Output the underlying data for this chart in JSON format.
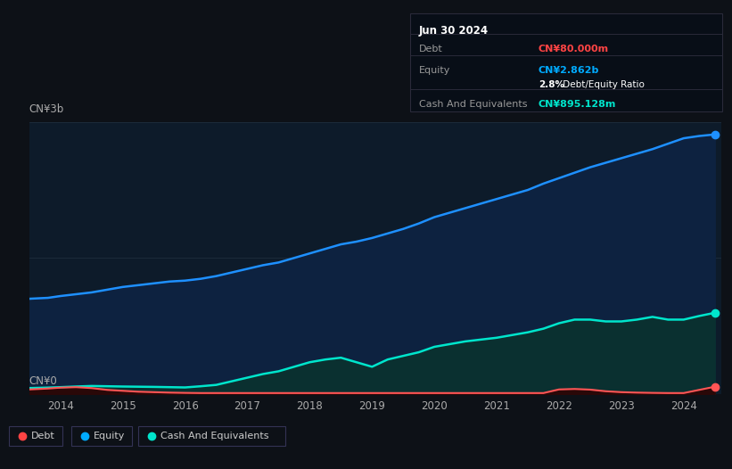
{
  "background_color": "#0d1117",
  "plot_bg_color": "#0d1b2a",
  "title_box": {
    "date": "Jun 30 2024",
    "debt_label": "Debt",
    "debt_value": "CN¥80.000m",
    "debt_color": "#ff4444",
    "equity_label": "Equity",
    "equity_value": "CN¥2.862b",
    "equity_color": "#00aaff",
    "ratio_bold": "2.8%",
    "ratio_rest": " Debt/Equity Ratio",
    "cash_label": "Cash And Equivalents",
    "cash_value": "CN¥895.128m",
    "cash_color": "#00e5cc",
    "box_bg": "#080e17",
    "box_border": "#2a2a3a",
    "text_color": "#999999"
  },
  "y_label_top": "CN¥3b",
  "y_label_bottom": "CN¥0",
  "x_ticks": [
    2014,
    2015,
    2016,
    2017,
    2018,
    2019,
    2020,
    2021,
    2022,
    2023,
    2024
  ],
  "legend": [
    {
      "label": "Debt",
      "color": "#ff4444"
    },
    {
      "label": "Equity",
      "color": "#00aaff"
    },
    {
      "label": "Cash And Equivalents",
      "color": "#00e5cc"
    }
  ],
  "equity_data": {
    "x": [
      2013.5,
      2013.8,
      2014.0,
      2014.25,
      2014.5,
      2014.75,
      2015.0,
      2015.25,
      2015.5,
      2015.75,
      2016.0,
      2016.25,
      2016.5,
      2016.75,
      2017.0,
      2017.25,
      2017.5,
      2017.75,
      2018.0,
      2018.25,
      2018.5,
      2018.75,
      2019.0,
      2019.25,
      2019.5,
      2019.75,
      2020.0,
      2020.25,
      2020.5,
      2020.75,
      2021.0,
      2021.25,
      2021.5,
      2021.75,
      2022.0,
      2022.25,
      2022.5,
      2022.75,
      2023.0,
      2023.25,
      2023.5,
      2023.75,
      2024.0,
      2024.25,
      2024.5
    ],
    "y": [
      1.05,
      1.06,
      1.08,
      1.1,
      1.12,
      1.15,
      1.18,
      1.2,
      1.22,
      1.24,
      1.25,
      1.27,
      1.3,
      1.34,
      1.38,
      1.42,
      1.45,
      1.5,
      1.55,
      1.6,
      1.65,
      1.68,
      1.72,
      1.77,
      1.82,
      1.88,
      1.95,
      2.0,
      2.05,
      2.1,
      2.15,
      2.2,
      2.25,
      2.32,
      2.38,
      2.44,
      2.5,
      2.55,
      2.6,
      2.65,
      2.7,
      2.76,
      2.82,
      2.845,
      2.862
    ]
  },
  "cash_data": {
    "x": [
      2013.5,
      2013.8,
      2014.0,
      2014.25,
      2014.5,
      2014.75,
      2015.0,
      2015.25,
      2015.5,
      2015.75,
      2016.0,
      2016.25,
      2016.5,
      2016.75,
      2017.0,
      2017.25,
      2017.5,
      2017.75,
      2018.0,
      2018.25,
      2018.5,
      2018.75,
      2019.0,
      2019.25,
      2019.5,
      2019.75,
      2020.0,
      2020.25,
      2020.5,
      2020.75,
      2021.0,
      2021.25,
      2021.5,
      2021.75,
      2022.0,
      2022.25,
      2022.5,
      2022.75,
      2023.0,
      2023.25,
      2023.5,
      2023.75,
      2024.0,
      2024.25,
      2024.5
    ],
    "y": [
      0.065,
      0.07,
      0.075,
      0.082,
      0.088,
      0.085,
      0.082,
      0.08,
      0.078,
      0.075,
      0.072,
      0.085,
      0.1,
      0.14,
      0.18,
      0.22,
      0.25,
      0.3,
      0.35,
      0.38,
      0.4,
      0.35,
      0.3,
      0.38,
      0.42,
      0.46,
      0.52,
      0.55,
      0.58,
      0.6,
      0.62,
      0.65,
      0.68,
      0.72,
      0.78,
      0.82,
      0.82,
      0.8,
      0.8,
      0.82,
      0.85,
      0.82,
      0.82,
      0.86,
      0.895
    ]
  },
  "debt_data": {
    "x": [
      2013.5,
      2013.8,
      2014.0,
      2014.25,
      2014.5,
      2014.75,
      2015.0,
      2015.25,
      2015.5,
      2015.75,
      2016.0,
      2016.25,
      2016.5,
      2016.75,
      2017.0,
      2017.25,
      2017.5,
      2017.75,
      2018.0,
      2018.25,
      2018.5,
      2018.75,
      2019.0,
      2019.25,
      2019.5,
      2019.75,
      2020.0,
      2020.25,
      2020.5,
      2020.75,
      2021.0,
      2021.25,
      2021.5,
      2021.75,
      2022.0,
      2022.25,
      2022.5,
      2022.75,
      2023.0,
      2023.25,
      2023.5,
      2023.75,
      2024.0,
      2024.25,
      2024.5
    ],
    "y": [
      0.05,
      0.06,
      0.07,
      0.075,
      0.065,
      0.045,
      0.035,
      0.025,
      0.02,
      0.015,
      0.012,
      0.01,
      0.01,
      0.01,
      0.01,
      0.01,
      0.01,
      0.01,
      0.01,
      0.01,
      0.01,
      0.01,
      0.01,
      0.01,
      0.01,
      0.01,
      0.01,
      0.01,
      0.01,
      0.01,
      0.01,
      0.01,
      0.01,
      0.01,
      0.05,
      0.055,
      0.048,
      0.03,
      0.02,
      0.015,
      0.012,
      0.01,
      0.01,
      0.045,
      0.08
    ]
  },
  "ylim": [
    0,
    3.0
  ],
  "xlim": [
    2013.5,
    2024.6
  ],
  "grid_color": "#1e2d3d",
  "equity_line_color": "#1e90ff",
  "equity_fill_color": "#0d2240",
  "cash_line_color": "#00e5cc",
  "cash_fill_color": "#0a3030",
  "debt_line_color": "#ff5555",
  "debt_fill_color": "#2a0808"
}
